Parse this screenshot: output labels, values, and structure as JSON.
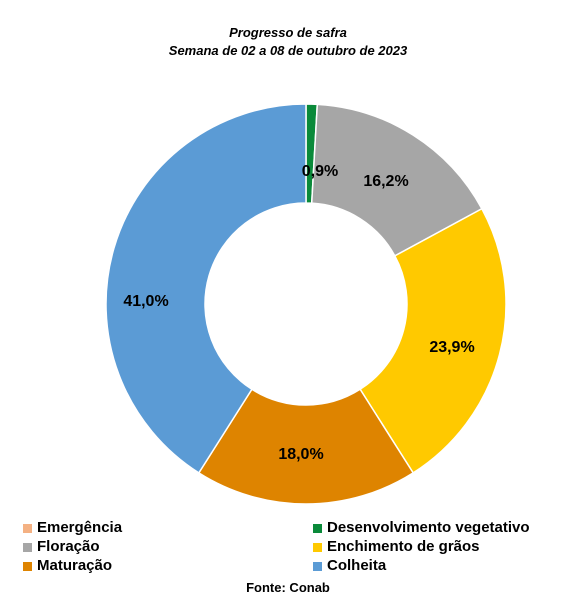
{
  "chart_data": {
    "type": "pie",
    "variant": "donut",
    "title": "Progresso de safra",
    "subtitle": "Semana de  02 a 08 de outubro de 2023",
    "categories": [
      "Emergência",
      "Desenvolvimento vegetativo",
      "Floração",
      "Enchimento de grãos",
      "Maturação",
      "Colheita"
    ],
    "values": [
      0.0,
      0.9,
      16.2,
      23.9,
      18.0,
      41.0
    ],
    "data_labels": [
      "",
      "0,9%",
      "16,2%",
      "23,9%",
      "18,0%",
      "41,0%"
    ],
    "colors": [
      "#f4b183",
      "#0a8a3a",
      "#a6a6a6",
      "#ffc900",
      "#de8400",
      "#5b9bd5"
    ],
    "legend_placement": "bottom",
    "source": "Fonte: Conab"
  }
}
